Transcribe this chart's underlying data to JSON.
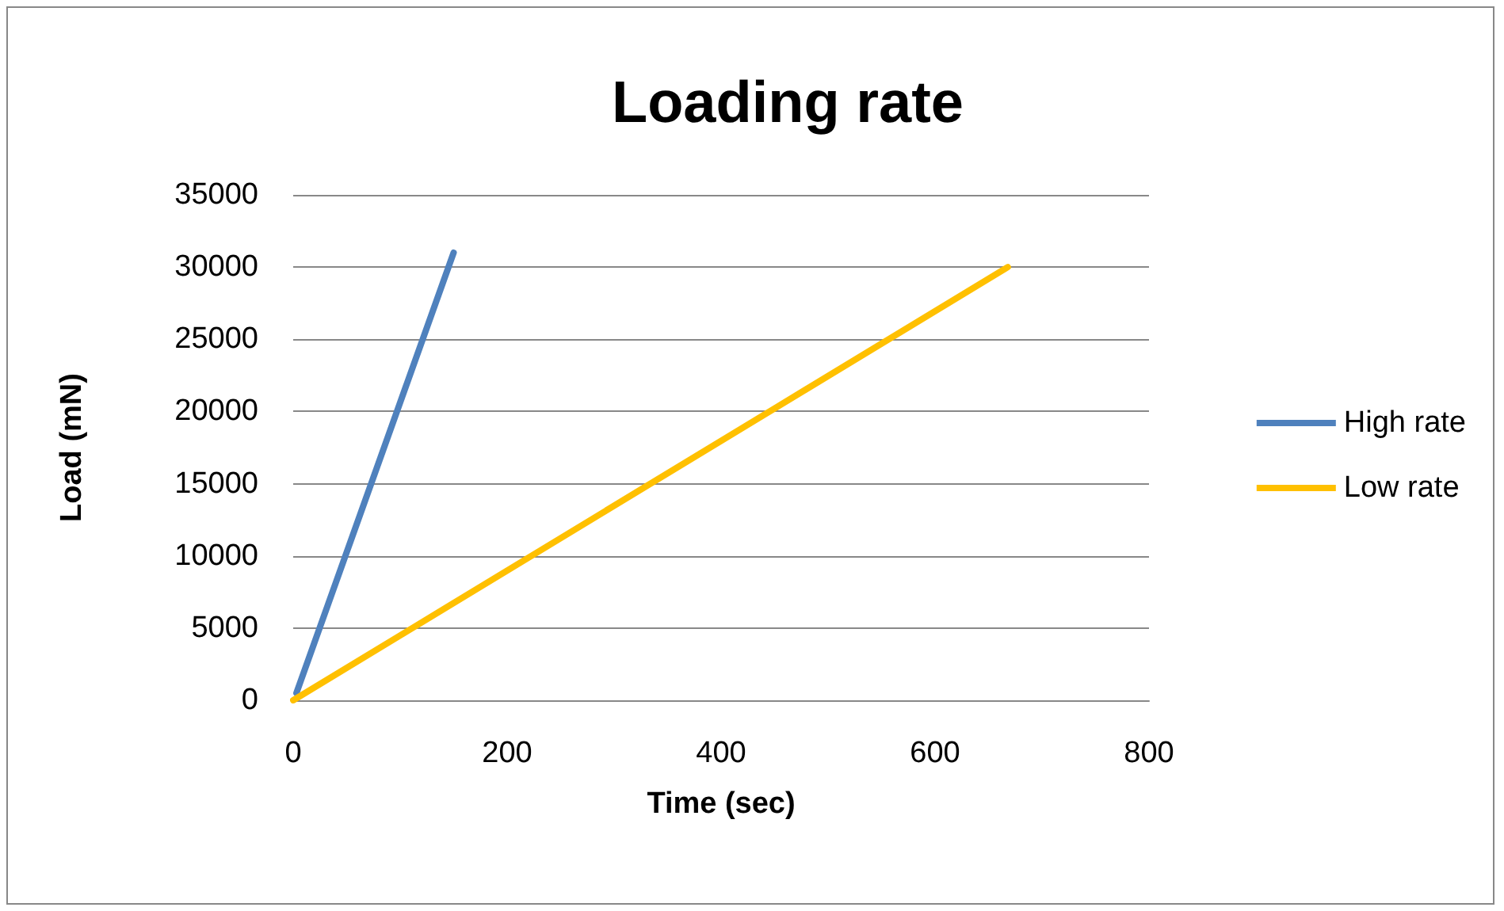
{
  "chart_data": {
    "type": "line",
    "title": "Loading rate",
    "xlabel": "Time (sec)",
    "ylabel": "Load (mN)",
    "xlim": [
      0,
      800
    ],
    "xticks": [
      0,
      200,
      400,
      600,
      800
    ],
    "ylim": [
      0,
      35000
    ],
    "yticks": [
      0,
      5000,
      10000,
      15000,
      20000,
      25000,
      30000,
      35000
    ],
    "grid": "y",
    "legend": "right",
    "marker": "none",
    "line_style": "solid",
    "series": [
      {
        "name": "High rate",
        "color": "#4f81bd",
        "x": [
          3,
          150
        ],
        "values": [
          500,
          31000
        ]
      },
      {
        "name": "Low rate",
        "color": "#ffc000",
        "x": [
          0,
          668
        ],
        "values": [
          0,
          30000
        ]
      }
    ]
  }
}
